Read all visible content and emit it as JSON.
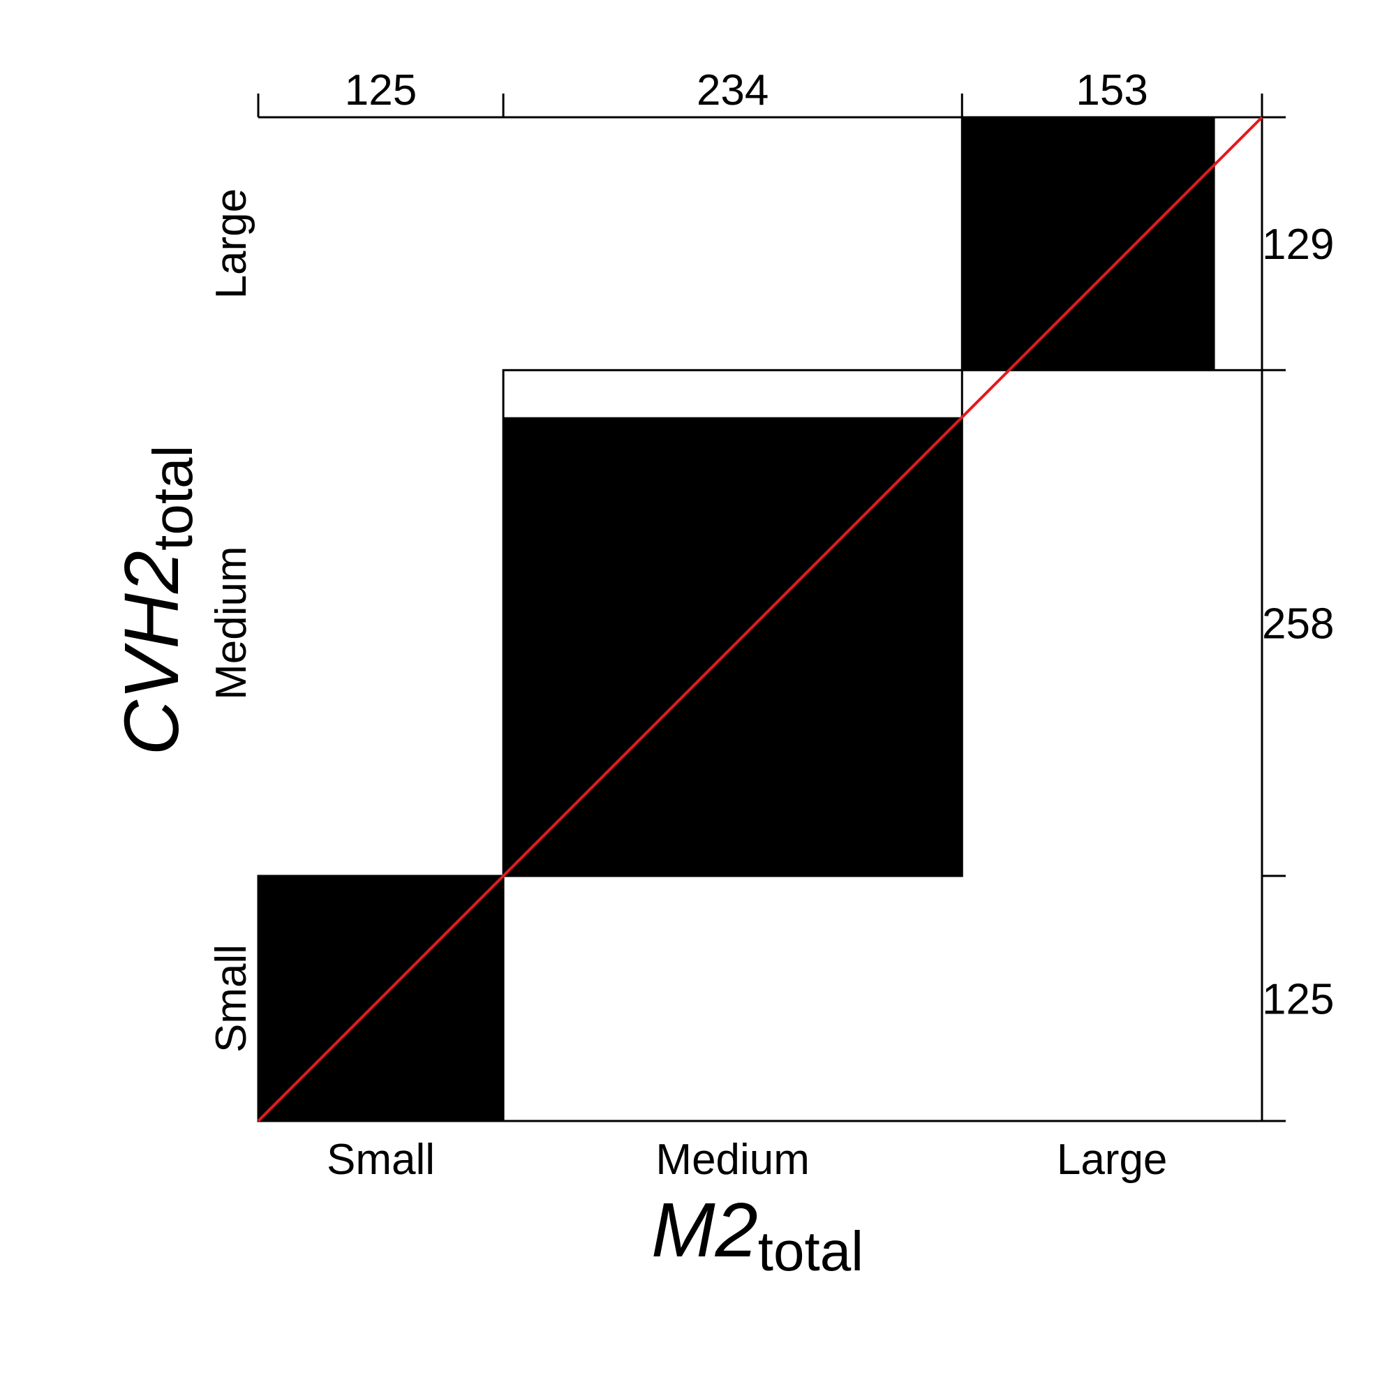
{
  "chart_data": {
    "type": "agreement",
    "categories": [
      "Small",
      "Medium",
      "Large"
    ],
    "x_marginals": [
      125,
      234,
      153
    ],
    "y_marginals": [
      125,
      258,
      129
    ],
    "diagonal_agreement": [
      125,
      234,
      129
    ],
    "x_axis": {
      "label_main": "M2",
      "label_sub": "total",
      "tick_labels": [
        "Small",
        "Medium",
        "Large"
      ]
    },
    "y_axis": {
      "label_main": "CVH2",
      "label_sub": "total",
      "tick_labels": [
        "Small",
        "Medium",
        "Large"
      ]
    },
    "reference_line_color": "#e41a1c",
    "block_color": "#000000"
  }
}
